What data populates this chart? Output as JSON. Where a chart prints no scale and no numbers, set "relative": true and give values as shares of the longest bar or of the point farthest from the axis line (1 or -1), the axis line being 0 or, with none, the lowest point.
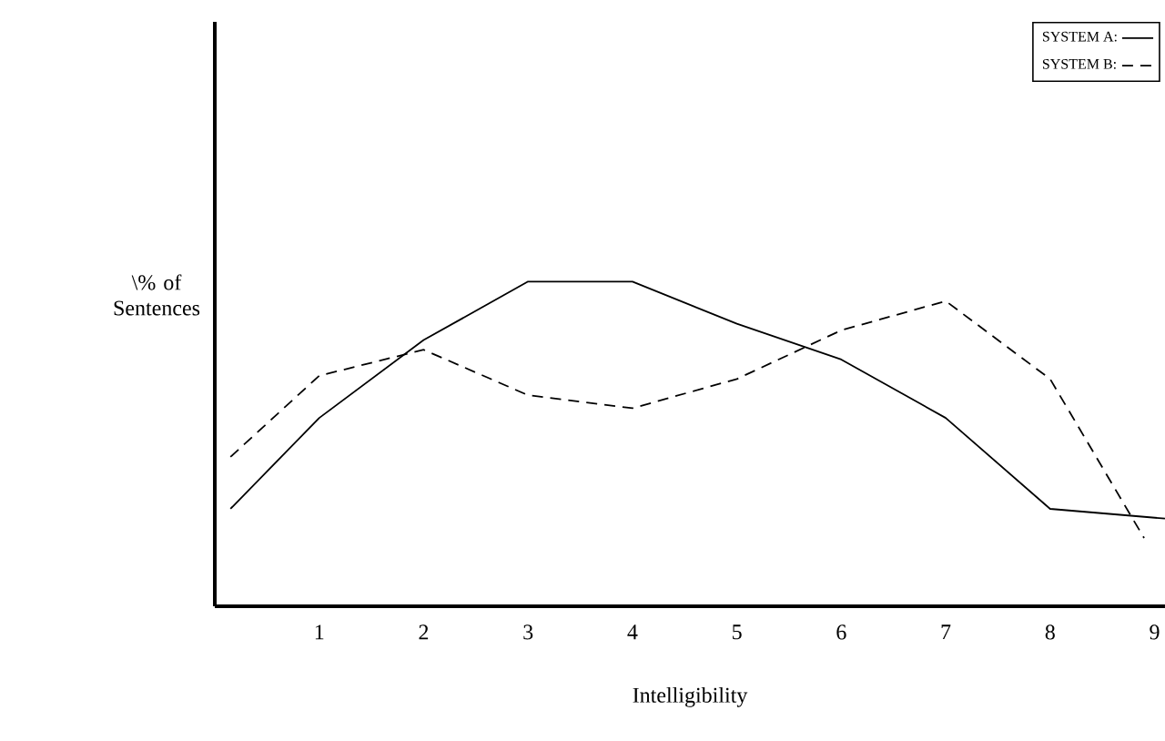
{
  "chart_data": {
    "type": "line",
    "xlabel": "Intelligibility",
    "ylabel": "\\% of Sentences",
    "relative": true,
    "xlim": [
      0,
      9.1
    ],
    "xticks": [
      1,
      2,
      3,
      4,
      5,
      6,
      7,
      8,
      9
    ],
    "legend": "top right",
    "grid": false,
    "series": [
      {
        "name": "SYSTEM A:",
        "color": "#000000",
        "line_style": "solid",
        "x": [
          0.15,
          1,
          2,
          3,
          4,
          5,
          6,
          7,
          8,
          9.1
        ],
        "values": [
          0.3,
          0.58,
          0.82,
          1,
          1,
          0.87,
          0.76,
          0.58,
          0.3,
          0.27
        ]
      },
      {
        "name": "SYSTEM B:",
        "color": "#000000",
        "line_style": "dashed",
        "x": [
          0.15,
          1,
          2,
          3,
          4,
          5,
          6,
          7,
          8,
          8.9
        ],
        "values": [
          0.46,
          0.71,
          0.79,
          0.65,
          0.61,
          0.7,
          0.85,
          0.94,
          0.7,
          0.21
        ]
      }
    ]
  }
}
